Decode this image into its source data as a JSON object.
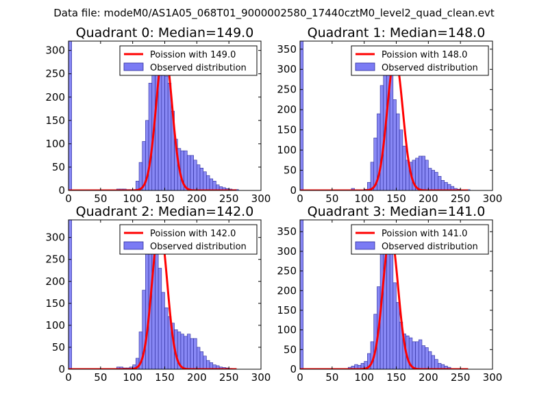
{
  "suptitle": "Data file: modeM0/AS1A05_068T01_9000002580_17440cztM0_level2_quad_clean.evt",
  "colors": {
    "bar_fill": "#7b7bf4",
    "bar_edge": "#2a2a99",
    "poisson_line": "#ff0000",
    "axis": "#000000"
  },
  "chart_data": [
    {
      "type": "bar",
      "title": "Quadrant 0: Median=149.0",
      "xlim": [
        0,
        300
      ],
      "ylim": [
        0,
        320
      ],
      "xticks": [
        0,
        50,
        100,
        150,
        200,
        250,
        300
      ],
      "yticks": [
        0,
        50,
        100,
        150,
        200,
        250,
        300
      ],
      "legend": {
        "position": "top-right",
        "entries": [
          "Poission with 149.0",
          "Observed distribution"
        ]
      },
      "poisson_mean": 149.0,
      "poisson_peak": 308,
      "bin_width": 5,
      "bins": [
        [
          0,
          320
        ],
        [
          75,
          3
        ],
        [
          80,
          3
        ],
        [
          85,
          3
        ],
        [
          90,
          2
        ],
        [
          95,
          2
        ],
        [
          100,
          2
        ],
        [
          105,
          20
        ],
        [
          110,
          60
        ],
        [
          115,
          105
        ],
        [
          120,
          150
        ],
        [
          125,
          230
        ],
        [
          130,
          285
        ],
        [
          135,
          310
        ],
        [
          140,
          300
        ],
        [
          145,
          250
        ],
        [
          150,
          245
        ],
        [
          155,
          230
        ],
        [
          160,
          170
        ],
        [
          165,
          110
        ],
        [
          170,
          90
        ],
        [
          175,
          85
        ],
        [
          180,
          85
        ],
        [
          185,
          75
        ],
        [
          190,
          75
        ],
        [
          195,
          65
        ],
        [
          200,
          55
        ],
        [
          205,
          48
        ],
        [
          210,
          40
        ],
        [
          215,
          32
        ],
        [
          220,
          25
        ],
        [
          225,
          20
        ],
        [
          230,
          12
        ],
        [
          235,
          8
        ],
        [
          240,
          6
        ],
        [
          245,
          4
        ],
        [
          250,
          3
        ],
        [
          255,
          2
        ],
        [
          260,
          2
        ]
      ]
    },
    {
      "type": "bar",
      "title": "Quadrant 1: Median=148.0",
      "xlim": [
        0,
        300
      ],
      "ylim": [
        0,
        370
      ],
      "xticks": [
        0,
        50,
        100,
        150,
        200,
        250,
        300
      ],
      "yticks": [
        0,
        50,
        100,
        150,
        200,
        250,
        300,
        350
      ],
      "legend": {
        "position": "top-right",
        "entries": [
          "Poission with 148.0",
          "Observed distribution"
        ]
      },
      "poisson_mean": 148.0,
      "poisson_peak": 330,
      "bin_width": 5,
      "bins": [
        [
          0,
          370
        ],
        [
          80,
          5
        ],
        [
          85,
          2
        ],
        [
          90,
          2
        ],
        [
          95,
          2
        ],
        [
          100,
          3
        ],
        [
          105,
          20
        ],
        [
          110,
          70
        ],
        [
          115,
          130
        ],
        [
          120,
          190
        ],
        [
          125,
          260
        ],
        [
          130,
          350
        ],
        [
          135,
          300
        ],
        [
          140,
          285
        ],
        [
          145,
          225
        ],
        [
          150,
          190
        ],
        [
          155,
          150
        ],
        [
          160,
          110
        ],
        [
          165,
          75
        ],
        [
          170,
          70
        ],
        [
          175,
          75
        ],
        [
          180,
          80
        ],
        [
          185,
          85
        ],
        [
          190,
          85
        ],
        [
          195,
          75
        ],
        [
          200,
          55
        ],
        [
          205,
          50
        ],
        [
          210,
          45
        ],
        [
          215,
          35
        ],
        [
          220,
          25
        ],
        [
          225,
          20
        ],
        [
          230,
          15
        ],
        [
          235,
          10
        ],
        [
          240,
          5
        ],
        [
          245,
          3
        ],
        [
          250,
          2
        ],
        [
          255,
          2
        ],
        [
          260,
          2
        ]
      ]
    },
    {
      "type": "bar",
      "title": "Quadrant 2: Median=142.0",
      "xlim": [
        0,
        300
      ],
      "ylim": [
        0,
        340
      ],
      "xticks": [
        0,
        50,
        100,
        150,
        200,
        250,
        300
      ],
      "yticks": [
        0,
        50,
        100,
        150,
        200,
        250,
        300
      ],
      "legend": {
        "position": "top-right",
        "entries": [
          "Poission with 142.0",
          "Observed distribution"
        ]
      },
      "poisson_mean": 142.0,
      "poisson_peak": 325,
      "bin_width": 5,
      "bins": [
        [
          0,
          340
        ],
        [
          75,
          5
        ],
        [
          80,
          5
        ],
        [
          85,
          3
        ],
        [
          90,
          3
        ],
        [
          95,
          5
        ],
        [
          100,
          10
        ],
        [
          105,
          25
        ],
        [
          110,
          85
        ],
        [
          115,
          180
        ],
        [
          120,
          270
        ],
        [
          125,
          310
        ],
        [
          130,
          295
        ],
        [
          135,
          290
        ],
        [
          140,
          230
        ],
        [
          145,
          175
        ],
        [
          150,
          140
        ],
        [
          155,
          120
        ],
        [
          160,
          105
        ],
        [
          165,
          90
        ],
        [
          170,
          85
        ],
        [
          175,
          80
        ],
        [
          180,
          75
        ],
        [
          185,
          80
        ],
        [
          190,
          70
        ],
        [
          195,
          70
        ],
        [
          200,
          50
        ],
        [
          205,
          40
        ],
        [
          210,
          30
        ],
        [
          215,
          20
        ],
        [
          220,
          15
        ],
        [
          225,
          10
        ],
        [
          230,
          8
        ],
        [
          235,
          5
        ],
        [
          240,
          4
        ],
        [
          245,
          3
        ],
        [
          250,
          2
        ]
      ]
    },
    {
      "type": "bar",
      "title": "Quadrant 3: Median=141.0",
      "xlim": [
        0,
        300
      ],
      "ylim": [
        0,
        380
      ],
      "xticks": [
        0,
        50,
        100,
        150,
        200,
        250,
        300
      ],
      "yticks": [
        0,
        50,
        100,
        150,
        200,
        250,
        300,
        350
      ],
      "legend": {
        "position": "top-right",
        "entries": [
          "Poission with 141.0",
          "Observed distribution"
        ]
      },
      "poisson_mean": 141.0,
      "poisson_peak": 345,
      "bin_width": 5,
      "bins": [
        [
          0,
          380
        ],
        [
          75,
          5
        ],
        [
          80,
          8
        ],
        [
          85,
          12
        ],
        [
          90,
          10
        ],
        [
          95,
          15
        ],
        [
          100,
          20
        ],
        [
          105,
          40
        ],
        [
          110,
          70
        ],
        [
          115,
          140
        ],
        [
          120,
          210
        ],
        [
          125,
          310
        ],
        [
          130,
          365
        ],
        [
          135,
          345
        ],
        [
          140,
          300
        ],
        [
          145,
          220
        ],
        [
          150,
          170
        ],
        [
          155,
          120
        ],
        [
          160,
          90
        ],
        [
          165,
          85
        ],
        [
          170,
          80
        ],
        [
          175,
          70
        ],
        [
          180,
          70
        ],
        [
          185,
          75
        ],
        [
          190,
          60
        ],
        [
          195,
          55
        ],
        [
          200,
          45
        ],
        [
          205,
          35
        ],
        [
          210,
          25
        ],
        [
          215,
          15
        ],
        [
          220,
          12
        ],
        [
          225,
          8
        ],
        [
          230,
          5
        ]
      ]
    }
  ]
}
